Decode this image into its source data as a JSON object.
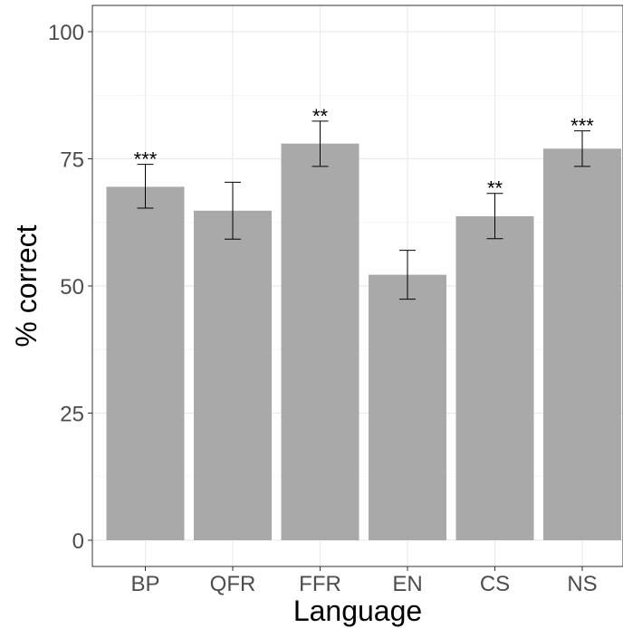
{
  "chart_data": {
    "type": "bar",
    "categories": [
      "BP",
      "QFR",
      "FFR",
      "EN",
      "CS",
      "NS"
    ],
    "values": [
      69.5,
      64.8,
      78.0,
      52.2,
      63.7,
      77.0
    ],
    "error_low": [
      65.3,
      59.2,
      73.5,
      47.4,
      59.3,
      73.5
    ],
    "error_high": [
      73.9,
      70.4,
      82.4,
      57.0,
      68.2,
      80.5
    ],
    "significance": [
      "***",
      "",
      "**",
      "",
      "**",
      "***"
    ],
    "xlabel": "Language",
    "ylabel": "% correct",
    "ylim": [
      0,
      100
    ],
    "yticks": [
      0,
      25,
      50,
      75,
      100
    ],
    "ytick_labels": [
      "0",
      "25",
      "50",
      "75",
      "100"
    ],
    "grid": true,
    "bar_color": "#a9a9a9",
    "grid_color": "#ebebeb"
  }
}
